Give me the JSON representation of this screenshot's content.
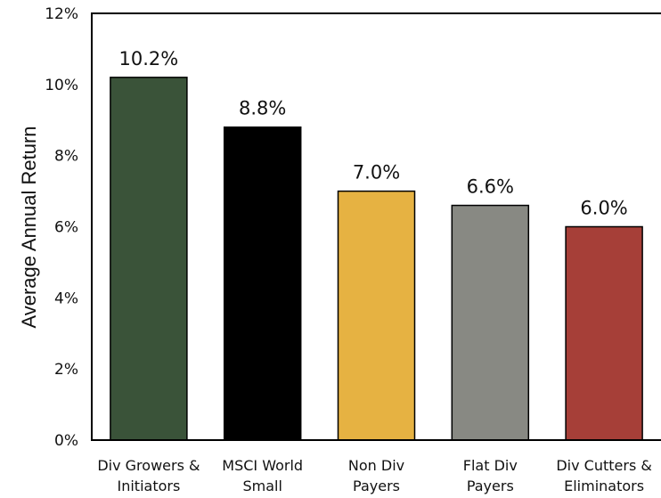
{
  "chart_data": {
    "type": "bar",
    "title": "",
    "xlabel": "",
    "ylabel": "Average Annual Return",
    "ylim": [
      0,
      12
    ],
    "yticks": [
      "0%",
      "2%",
      "4%",
      "6%",
      "8%",
      "10%",
      "12%"
    ],
    "grid": false,
    "legend": "none",
    "categories": [
      [
        "Div Growers &",
        "Initiators"
      ],
      [
        "MSCI World",
        "Small"
      ],
      [
        "Non Div",
        "Payers"
      ],
      [
        "Flat Div",
        "Payers"
      ],
      [
        "Div Cutters &",
        "Eliminators"
      ]
    ],
    "values": [
      10.2,
      8.8,
      7.0,
      6.6,
      6.0
    ],
    "data_labels": [
      "10.2%",
      "8.8%",
      "7.0%",
      "6.6%",
      "6.0%"
    ],
    "colors": [
      "#3a5339",
      "#000000",
      "#e6b242",
      "#888983",
      "#a63f38"
    ]
  }
}
